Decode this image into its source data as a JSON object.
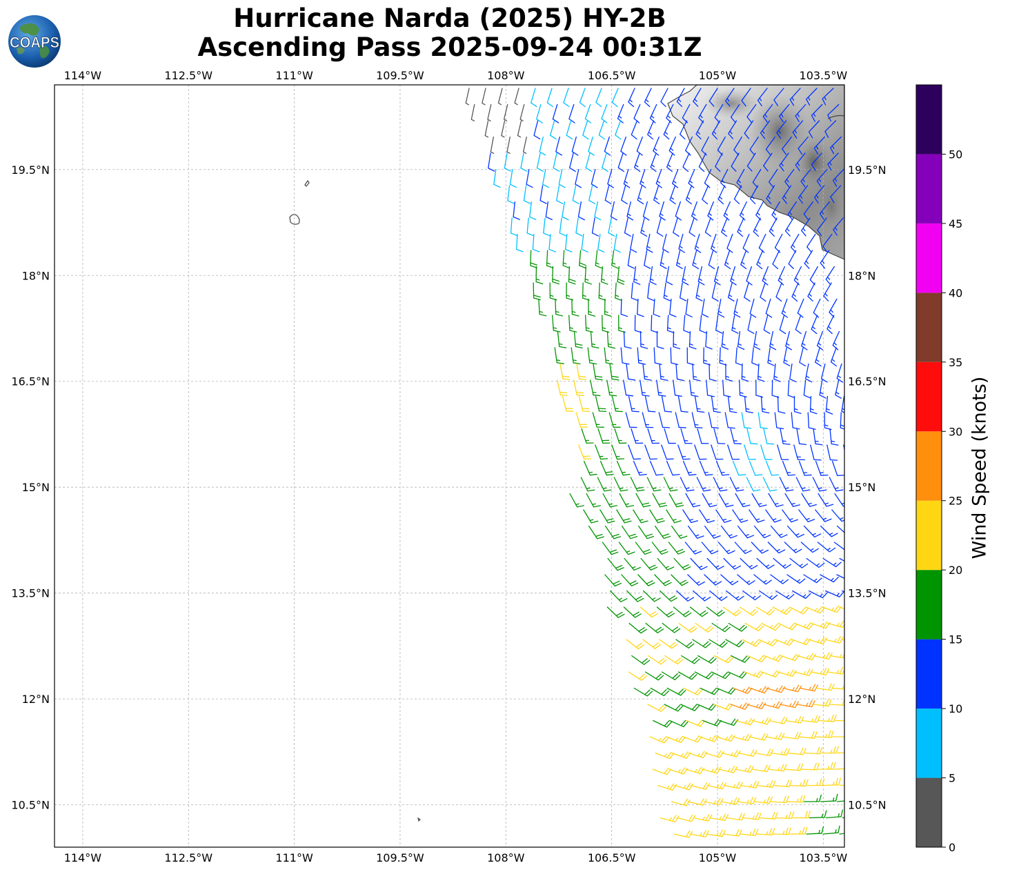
{
  "title": {
    "line1": "Hurricane Narda (2025) HY-2B",
    "line2": "Ascending Pass 2025-09-24 00:31Z"
  },
  "logo": {
    "text": "COAPS",
    "icon": "globe-icon"
  },
  "map": {
    "lon_ticks": [
      "114°W",
      "112.5°W",
      "111°W",
      "109.5°W",
      "108°W",
      "106.5°W",
      "105°W",
      "103.5°W"
    ],
    "lat_ticks": [
      "19.5°N",
      "18°N",
      "16.5°N",
      "15°N",
      "13.5°N",
      "12°N",
      "10.5°N"
    ],
    "lon_values": [
      -114,
      -112.5,
      -111,
      -109.5,
      -108,
      -106.5,
      -105,
      -103.5
    ],
    "lat_values": [
      19.5,
      18,
      16.5,
      15,
      13.5,
      12,
      10.5
    ],
    "lon_range": [
      -114.4,
      -103.2
    ],
    "lat_range": [
      9.9,
      20.7
    ],
    "gridlines": true,
    "land_shading": "grayscale topography (Mexico coast, top-right)"
  },
  "wind": {
    "type": "wind barbs",
    "units": "knots",
    "color_by_speed": true
  },
  "colorbar": {
    "label": "Wind Speed (knots)",
    "ticks": [
      "0",
      "5",
      "10",
      "15",
      "20",
      "25",
      "30",
      "35",
      "40",
      "45",
      "50"
    ],
    "bins": [
      {
        "min": 0,
        "max": 5,
        "color": "#575757"
      },
      {
        "min": 5,
        "max": 10,
        "color": "#00bfff"
      },
      {
        "min": 10,
        "max": 15,
        "color": "#0033ff"
      },
      {
        "min": 15,
        "max": 20,
        "color": "#009400"
      },
      {
        "min": 20,
        "max": 25,
        "color": "#ffd614"
      },
      {
        "min": 25,
        "max": 30,
        "color": "#ff8f0d"
      },
      {
        "min": 30,
        "max": 35,
        "color": "#ff0d0d"
      },
      {
        "min": 35,
        "max": 40,
        "color": "#803b2b"
      },
      {
        "min": 40,
        "max": 45,
        "color": "#f200f2"
      },
      {
        "min": 45,
        "max": 50,
        "color": "#8500ba"
      },
      {
        "min": 50,
        "max": 55,
        "color": "#2e005e"
      }
    ]
  }
}
